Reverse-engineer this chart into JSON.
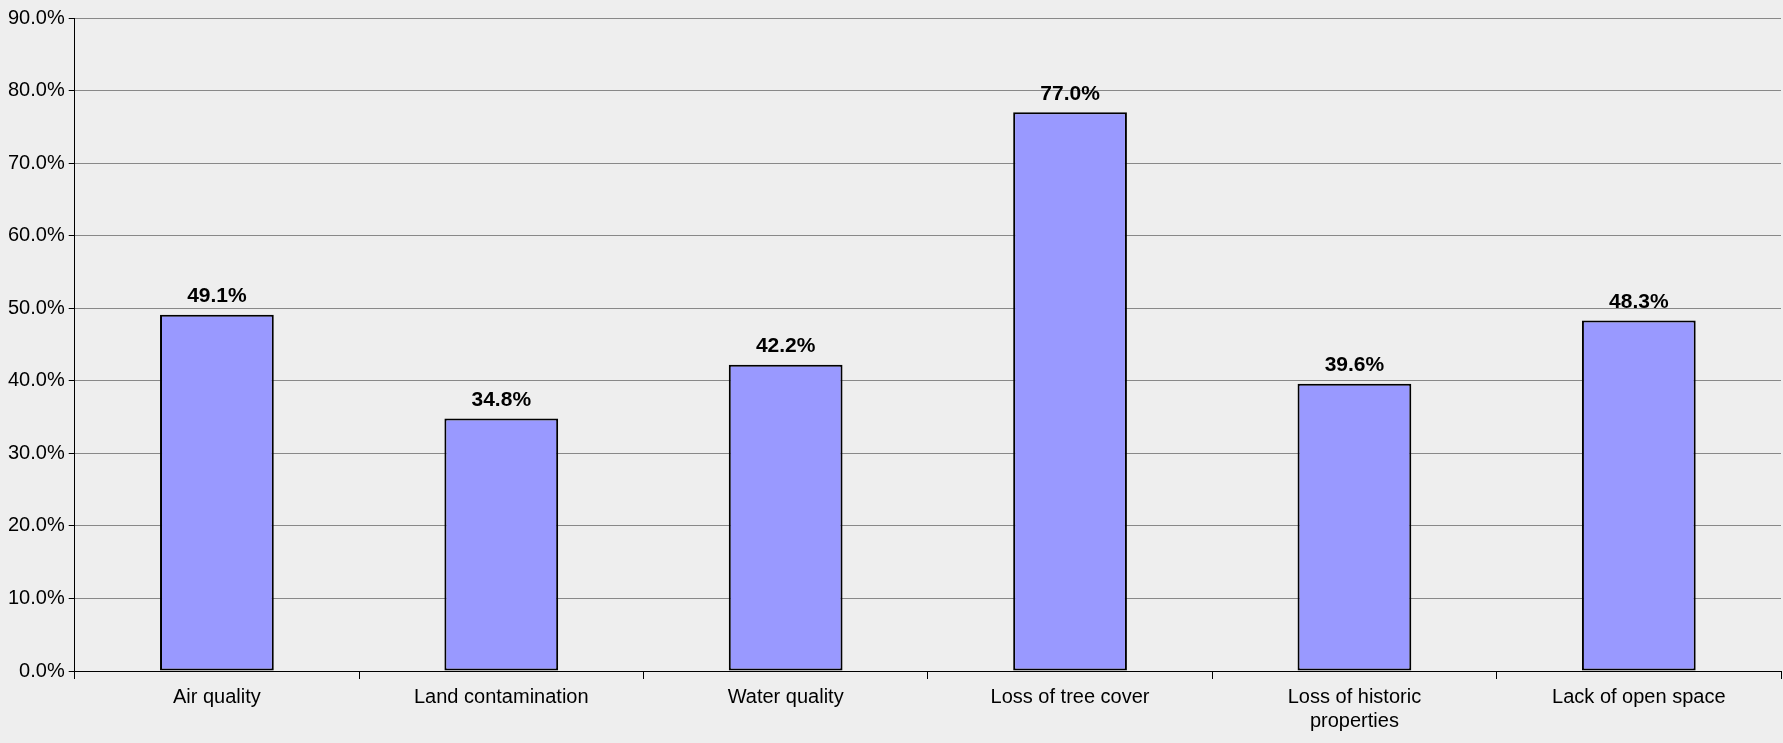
{
  "chart_data": {
    "type": "bar",
    "categories": [
      "Air quality",
      "Land contamination",
      "Water quality",
      "Loss of tree cover",
      "Loss of historic properties",
      "Lack of open space"
    ],
    "values": [
      49.1,
      34.8,
      42.2,
      77.0,
      39.6,
      48.3
    ],
    "value_labels": [
      "49.1%",
      "34.8%",
      "42.2%",
      "77.0%",
      "39.6%",
      "48.3%"
    ],
    "color": "#9999ff",
    "ylim": [
      0,
      90
    ],
    "yticks": [
      {
        "value": 0,
        "label": "0.0%"
      },
      {
        "value": 10,
        "label": "10.0%"
      },
      {
        "value": 20,
        "label": "20.0%"
      },
      {
        "value": 30,
        "label": "30.0%"
      },
      {
        "value": 40,
        "label": "40.0%"
      },
      {
        "value": 50,
        "label": "50.0%"
      },
      {
        "value": 60,
        "label": "60.0%"
      },
      {
        "value": 70,
        "label": "70.0%"
      },
      {
        "value": 80,
        "label": "80.0%"
      },
      {
        "value": 90,
        "label": "90.0%"
      }
    ],
    "grid": "y",
    "legend": false
  }
}
